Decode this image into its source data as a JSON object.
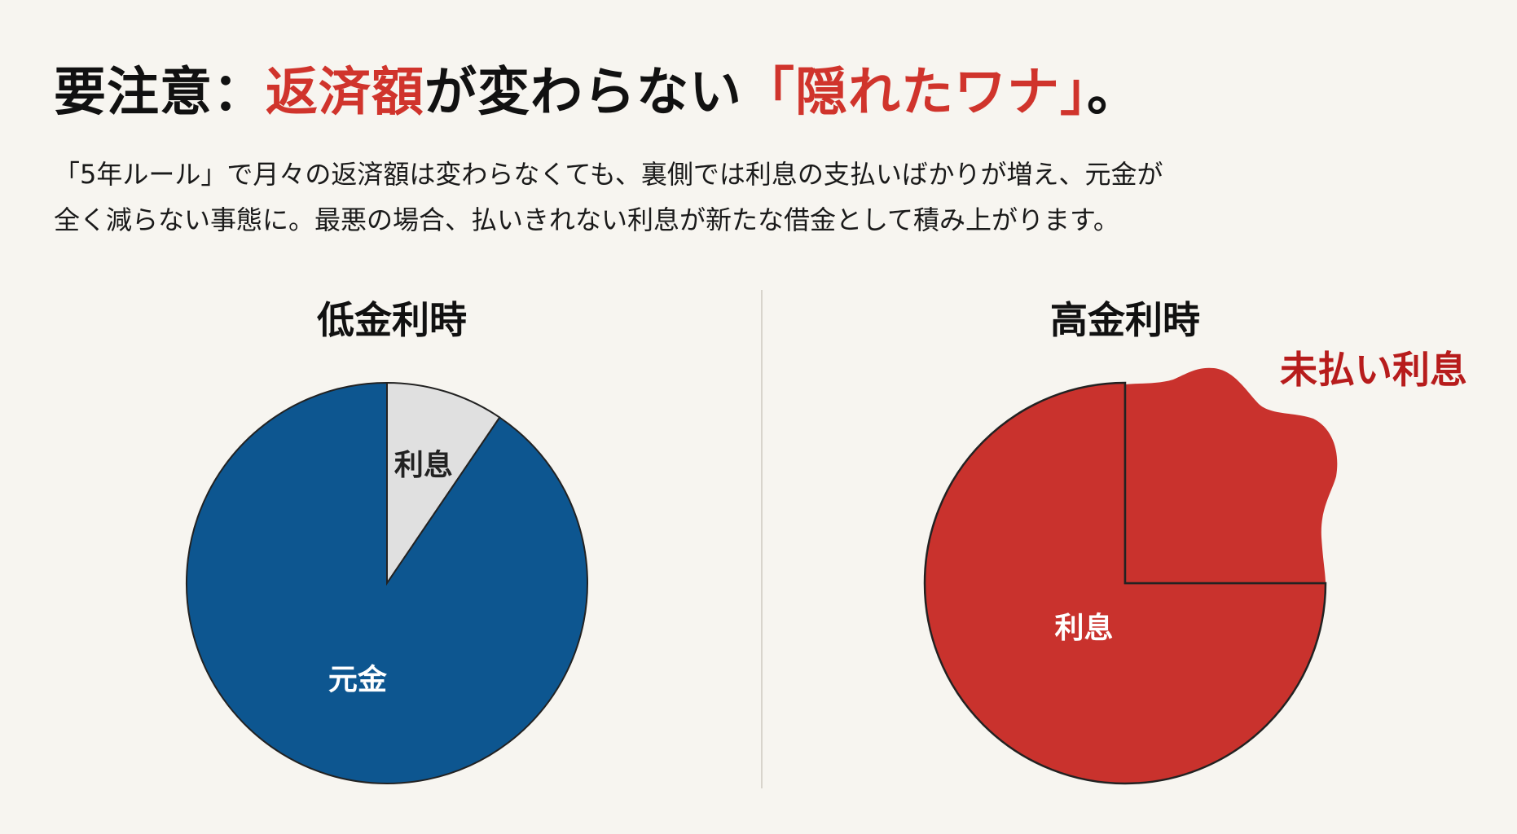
{
  "title": {
    "part1": "要注意：",
    "part2": "返済額",
    "part3": "が変わらない",
    "part4": "「隠れたワナ」",
    "part5": "。"
  },
  "description": {
    "line1": "「5年ルール」で月々の返済額は変わらなくても、裏側では利息の支払いばかりが増え、元金が",
    "line2": "全く減らない事態に。最悪の場合、払いきれない利息が新たな借金として積み上がります。"
  },
  "colors": {
    "accent_red": "#d0342c",
    "principal_blue": "#0d5690",
    "interest_gray": "#e0e0e0",
    "interest_red": "#c9322d",
    "unpaid_label": "#b71c1c"
  },
  "chart_data": [
    {
      "type": "pie",
      "title": "低金利時",
      "slices": [
        {
          "label": "利息",
          "value": 9.5,
          "color": "#e0e0e0",
          "label_color": "#222"
        },
        {
          "label": "元金",
          "value": 90.5,
          "color": "#0d5690",
          "label_color": "#ffffff"
        }
      ]
    },
    {
      "type": "pie",
      "title": "高金利時",
      "slices": [
        {
          "label": "未払い利息",
          "value": 25,
          "color": "#c9322d",
          "label_color": "#b71c1c",
          "overflowing": true
        },
        {
          "label": "利息",
          "value": 75,
          "color": "#c9322d",
          "label_color": "#ffffff"
        }
      ]
    }
  ]
}
